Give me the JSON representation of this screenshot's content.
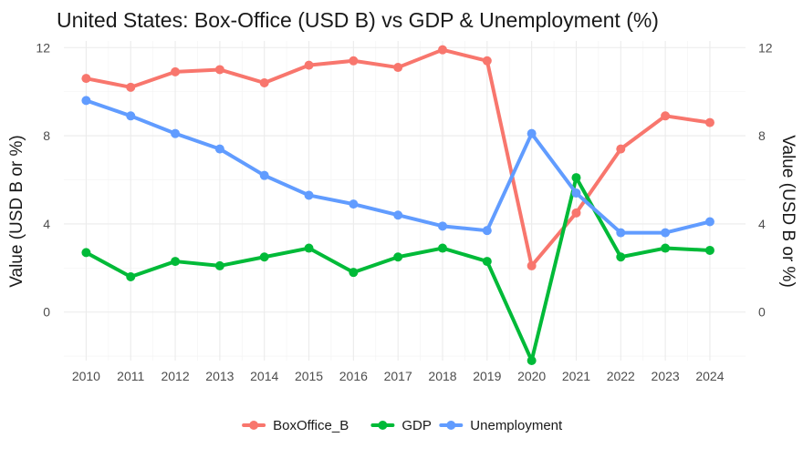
{
  "chart_data": {
    "type": "line",
    "title": "United States: Box-Office (USD B) vs GDP & Unemployment (%)",
    "xlabel": "",
    "ylabel_left": "Value (USD B or %)",
    "ylabel_right": "Value (USD B or %)",
    "x": [
      2010,
      2011,
      2012,
      2013,
      2014,
      2015,
      2016,
      2017,
      2018,
      2019,
      2020,
      2021,
      2022,
      2023,
      2024
    ],
    "xlim": [
      2009.5,
      2024.8
    ],
    "ylim": [
      -2.2,
      12.3
    ],
    "yticks": [
      0,
      4,
      8,
      12
    ],
    "grid": true,
    "legend_position": "bottom",
    "series": [
      {
        "name": "BoxOffice_B",
        "color": "#F8766D",
        "values": [
          10.6,
          10.2,
          10.9,
          11.0,
          10.4,
          11.2,
          11.4,
          11.1,
          11.9,
          11.4,
          2.1,
          4.5,
          7.4,
          8.9,
          8.6
        ]
      },
      {
        "name": "GDP",
        "color": "#00BA38",
        "values": [
          2.7,
          1.6,
          2.3,
          2.1,
          2.5,
          2.9,
          1.8,
          2.5,
          2.9,
          2.3,
          -2.2,
          6.1,
          2.5,
          2.9,
          2.8
        ]
      },
      {
        "name": "Unemployment",
        "color": "#619CFF",
        "values": [
          9.6,
          8.9,
          8.1,
          7.4,
          6.2,
          5.3,
          4.9,
          4.4,
          3.9,
          3.7,
          8.1,
          5.4,
          3.6,
          3.6,
          4.1
        ]
      }
    ]
  }
}
